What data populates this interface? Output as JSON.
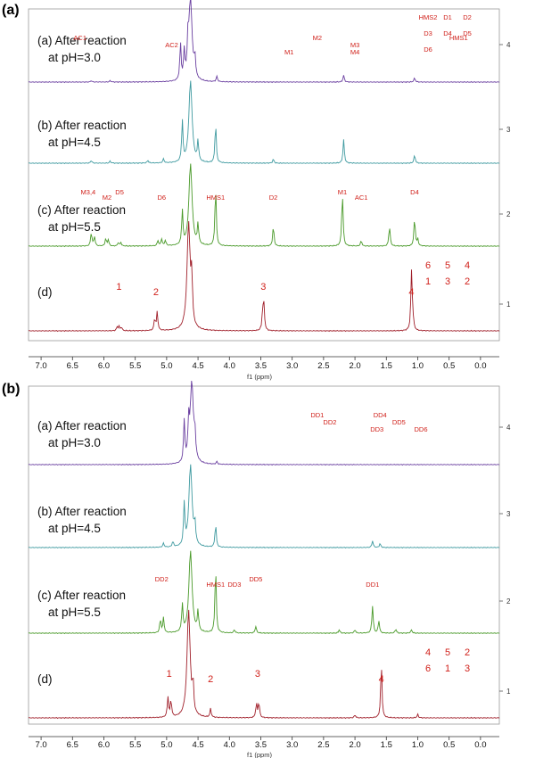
{
  "figure": {
    "panels": [
      {
        "letter": "(a)",
        "spectra": [
          {
            "label": "(a) After reaction",
            "sub": "at pH=3.0"
          },
          {
            "label": "(b) After reaction",
            "sub": "at pH=4.5"
          },
          {
            "label": "(c) After reaction",
            "sub": "at pH=5.5"
          },
          {
            "label": "(d)",
            "sub": ""
          }
        ]
      },
      {
        "letter": "(b)",
        "spectra": [
          {
            "label": "(a) After reaction",
            "sub": "at pH=3.0"
          },
          {
            "label": "(b) After reaction",
            "sub": "at pH=4.5"
          },
          {
            "label": "(c) After reaction",
            "sub": "at pH=5.5"
          },
          {
            "label": "(d)",
            "sub": ""
          }
        ]
      }
    ],
    "colors": {
      "a": "#6a3fa0",
      "b": "#3f9aa0",
      "c": "#4a9a2a",
      "d": "#a01f2a",
      "annot": "#d0201a"
    }
  },
  "chart_data": [
    {
      "type": "line",
      "xlabel": "f1 (ppm)",
      "xlim": [
        7.2,
        -0.3
      ],
      "xticks": [
        "7.0",
        "6.5",
        "6.0",
        "5.5",
        "5.0",
        "4.5",
        "4.0",
        "3.5",
        "3.0",
        "2.5",
        "2.0",
        "1.5",
        "1.0",
        "0.5",
        "0.0"
      ],
      "yticks": [
        "4",
        "3",
        "2",
        "1"
      ],
      "series": [
        {
          "key": "a",
          "peaks": [
            {
              "x": 4.78,
              "h": 0.55
            },
            {
              "x": 4.72,
              "h": 0.4
            },
            {
              "x": 4.66,
              "h": 0.45
            },
            {
              "x": 4.62,
              "h": 1.2
            },
            {
              "x": 4.55,
              "h": 0.3
            },
            {
              "x": 4.2,
              "h": 0.08
            },
            {
              "x": 2.18,
              "h": 0.1
            },
            {
              "x": 1.05,
              "h": 0.06
            },
            {
              "x": 6.2,
              "h": 0.02
            },
            {
              "x": 5.9,
              "h": 0.02
            }
          ]
        },
        {
          "key": "b",
          "peaks": [
            {
              "x": 4.75,
              "h": 0.6
            },
            {
              "x": 4.62,
              "h": 1.2
            },
            {
              "x": 4.5,
              "h": 0.3
            },
            {
              "x": 4.22,
              "h": 0.6
            },
            {
              "x": 3.3,
              "h": 0.06
            },
            {
              "x": 2.18,
              "h": 0.35
            },
            {
              "x": 1.05,
              "h": 0.12
            },
            {
              "x": 6.2,
              "h": 0.04
            },
            {
              "x": 5.9,
              "h": 0.03
            },
            {
              "x": 5.3,
              "h": 0.04
            },
            {
              "x": 5.05,
              "h": 0.06
            }
          ]
        },
        {
          "key": "c",
          "peaks": [
            {
              "x": 6.2,
              "h": 0.2
            },
            {
              "x": 6.15,
              "h": 0.14
            },
            {
              "x": 5.97,
              "h": 0.11
            },
            {
              "x": 5.93,
              "h": 0.09
            },
            {
              "x": 5.77,
              "h": 0.05
            },
            {
              "x": 5.73,
              "h": 0.05
            },
            {
              "x": 5.14,
              "h": 0.08
            },
            {
              "x": 5.08,
              "h": 0.1
            },
            {
              "x": 5.02,
              "h": 0.08
            },
            {
              "x": 4.75,
              "h": 0.5
            },
            {
              "x": 4.62,
              "h": 1.2
            },
            {
              "x": 4.5,
              "h": 0.3
            },
            {
              "x": 4.22,
              "h": 0.9
            },
            {
              "x": 3.3,
              "h": 0.3
            },
            {
              "x": 2.2,
              "h": 0.8
            },
            {
              "x": 1.9,
              "h": 0.08
            },
            {
              "x": 1.45,
              "h": 0.3
            },
            {
              "x": 1.05,
              "h": 0.42
            },
            {
              "x": 1.0,
              "h": 0.1
            }
          ]
        },
        {
          "key": "d",
          "peaks": [
            {
              "x": 5.79,
              "h": 0.05
            },
            {
              "x": 5.76,
              "h": 0.06
            },
            {
              "x": 5.72,
              "h": 0.05
            },
            {
              "x": 5.19,
              "h": 0.16
            },
            {
              "x": 5.15,
              "h": 0.26
            },
            {
              "x": 4.65,
              "h": 1.5
            },
            {
              "x": 4.6,
              "h": 0.6
            },
            {
              "x": 3.47,
              "h": 0.28
            },
            {
              "x": 3.45,
              "h": 0.33
            },
            {
              "x": 1.1,
              "h": 0.8
            },
            {
              "x": 1.08,
              "h": 0.2
            }
          ]
        }
      ],
      "annotations": [
        {
          "text": "AC1",
          "x": 6.38,
          "row": "a"
        },
        {
          "text": "AC2",
          "x": 4.92,
          "row": "a"
        },
        {
          "text": "M1",
          "x": 3.05,
          "row": "a"
        },
        {
          "text": "M2",
          "x": 2.6,
          "row": "a"
        },
        {
          "text": "M3",
          "x": 2.0,
          "row": "a"
        },
        {
          "text": "M4",
          "x": 2.0,
          "row": "a"
        },
        {
          "text": "HMS1",
          "x": 0.35,
          "row": "a"
        },
        {
          "text": "HMS2",
          "x": -0.55,
          "row": "a"
        },
        {
          "text": "D1",
          "x": -1.55,
          "row": "a"
        },
        {
          "text": "D2",
          "x": -1.35,
          "row": "a"
        },
        {
          "text": "D3",
          "x": -0.7,
          "row": "a"
        },
        {
          "text": "D4",
          "x": -0.45,
          "row": "a"
        },
        {
          "text": "D5",
          "x": -0.45,
          "row": "a"
        },
        {
          "text": "D6",
          "x": -0.75,
          "row": "a"
        },
        {
          "text": "HMS1",
          "x": 4.22,
          "row": "c"
        },
        {
          "text": "M1",
          "x": 2.2,
          "row": "c"
        },
        {
          "text": "D2",
          "x": 3.3,
          "row": "c"
        },
        {
          "text": "D4",
          "x": 1.05,
          "row": "c"
        },
        {
          "text": "AC1",
          "x": 1.9,
          "row": "c"
        },
        {
          "text": "M3,4",
          "x": 6.25,
          "row": "c"
        },
        {
          "text": "M2",
          "x": 5.95,
          "row": "c"
        },
        {
          "text": "D5",
          "x": 5.75,
          "row": "c"
        },
        {
          "text": "D6",
          "x": 5.08,
          "row": "c"
        },
        {
          "text": "1",
          "x": 5.76,
          "row": "d"
        },
        {
          "text": "2",
          "x": 5.17,
          "row": "d"
        },
        {
          "text": "3",
          "x": 3.46,
          "row": "d"
        },
        {
          "text": "4",
          "x": 1.1,
          "row": "d"
        },
        {
          "text": "6",
          "x": -1.25,
          "row": "d"
        },
        {
          "text": "5",
          "x": -0.95,
          "row": "d"
        },
        {
          "text": "4",
          "x": -0.85,
          "row": "d"
        },
        {
          "text": "1",
          "x": -0.95,
          "row": "d"
        },
        {
          "text": "3",
          "x": -1.35,
          "row": "d"
        },
        {
          "text": "2",
          "x": -1.05,
          "row": "d"
        }
      ]
    },
    {
      "type": "line",
      "xlabel": "f1 (ppm)",
      "xlim": [
        7.2,
        -0.3
      ],
      "xticks": [
        "7.0",
        "6.5",
        "6.0",
        "5.5",
        "5.0",
        "4.5",
        "4.0",
        "3.5",
        "3.0",
        "2.5",
        "2.0",
        "1.5",
        "1.0",
        "0.5",
        "0.0"
      ],
      "yticks": [
        "4",
        "3",
        "2",
        "1"
      ],
      "series": [
        {
          "key": "a",
          "peaks": [
            {
              "x": 4.72,
              "h": 0.6
            },
            {
              "x": 4.65,
              "h": 0.5
            },
            {
              "x": 4.6,
              "h": 1.2
            },
            {
              "x": 4.55,
              "h": 0.35
            },
            {
              "x": 4.2,
              "h": 0.04
            }
          ]
        },
        {
          "key": "b",
          "peaks": [
            {
              "x": 4.72,
              "h": 0.6
            },
            {
              "x": 4.62,
              "h": 1.2
            },
            {
              "x": 4.55,
              "h": 0.3
            },
            {
              "x": 4.22,
              "h": 0.35
            },
            {
              "x": 5.05,
              "h": 0.06
            },
            {
              "x": 4.9,
              "h": 0.08
            },
            {
              "x": 1.72,
              "h": 0.1
            },
            {
              "x": 1.6,
              "h": 0.06
            }
          ]
        },
        {
          "key": "c",
          "peaks": [
            {
              "x": 5.1,
              "h": 0.2
            },
            {
              "x": 5.05,
              "h": 0.22
            },
            {
              "x": 4.75,
              "h": 0.4
            },
            {
              "x": 4.62,
              "h": 1.2
            },
            {
              "x": 4.5,
              "h": 0.3
            },
            {
              "x": 4.22,
              "h": 1.0
            },
            {
              "x": 3.92,
              "h": 0.05
            },
            {
              "x": 3.58,
              "h": 0.1
            },
            {
              "x": 2.25,
              "h": 0.05
            },
            {
              "x": 2.0,
              "h": 0.05
            },
            {
              "x": 1.72,
              "h": 0.4
            },
            {
              "x": 1.62,
              "h": 0.18
            },
            {
              "x": 1.35,
              "h": 0.06
            },
            {
              "x": 1.1,
              "h": 0.05
            }
          ]
        },
        {
          "key": "d",
          "peaks": [
            {
              "x": 4.98,
              "h": 0.28
            },
            {
              "x": 4.93,
              "h": 0.24
            },
            {
              "x": 4.65,
              "h": 1.5
            },
            {
              "x": 4.58,
              "h": 0.4
            },
            {
              "x": 4.3,
              "h": 0.12
            },
            {
              "x": 3.57,
              "h": 0.2
            },
            {
              "x": 3.53,
              "h": 0.22
            },
            {
              "x": 2.0,
              "h": 0.04
            },
            {
              "x": 1.58,
              "h": 0.78
            },
            {
              "x": 1.0,
              "h": 0.05
            }
          ]
        }
      ],
      "annotations": [
        {
          "text": "DD1",
          "x": 2.6,
          "row": "a"
        },
        {
          "text": "DD2",
          "x": 2.4,
          "row": "a"
        },
        {
          "text": "DD3",
          "x": 1.65,
          "row": "a"
        },
        {
          "text": "DD4",
          "x": 1.6,
          "row": "a"
        },
        {
          "text": "DD5",
          "x": 1.3,
          "row": "a"
        },
        {
          "text": "DD6",
          "x": 0.95,
          "row": "a"
        },
        {
          "text": "HMS1",
          "x": 4.22,
          "row": "c"
        },
        {
          "text": "DD2",
          "x": 5.08,
          "row": "c"
        },
        {
          "text": "DD3",
          "x": 3.92,
          "row": "c"
        },
        {
          "text": "DD5",
          "x": 3.58,
          "row": "c"
        },
        {
          "text": "DD1",
          "x": 1.72,
          "row": "c"
        },
        {
          "text": "1",
          "x": 4.96,
          "row": "d"
        },
        {
          "text": "2",
          "x": 4.3,
          "row": "d"
        },
        {
          "text": "3",
          "x": 3.55,
          "row": "d"
        },
        {
          "text": "4",
          "x": 1.58,
          "row": "d"
        },
        {
          "text": "4",
          "x": -0.9,
          "row": "d"
        },
        {
          "text": "5",
          "x": -0.95,
          "row": "d"
        },
        {
          "text": "2",
          "x": -0.85,
          "row": "d"
        },
        {
          "text": "6",
          "x": -1.25,
          "row": "d"
        },
        {
          "text": "1",
          "x": -0.95,
          "row": "d"
        },
        {
          "text": "3",
          "x": -1.1,
          "row": "d"
        }
      ]
    }
  ]
}
